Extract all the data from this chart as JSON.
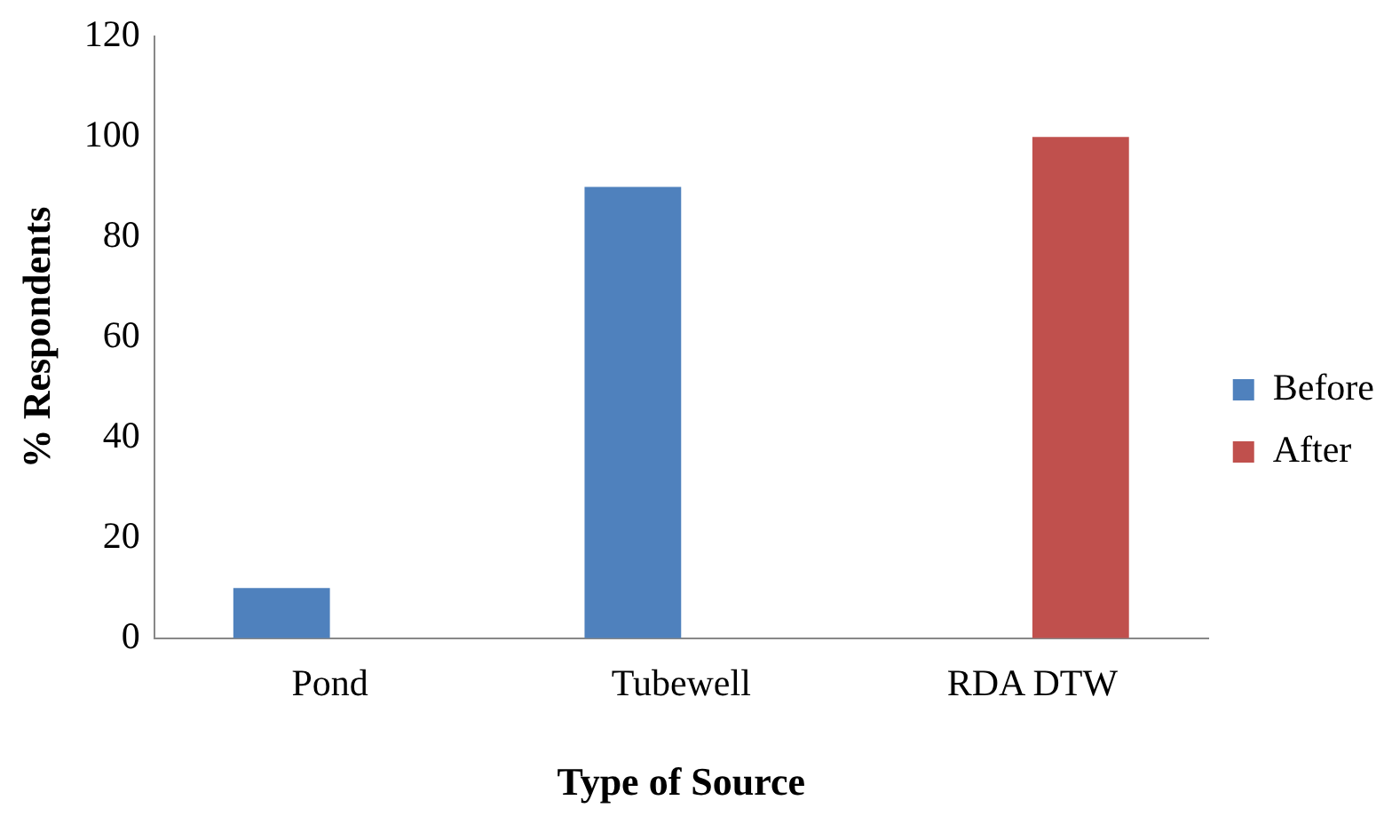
{
  "chart_data": {
    "type": "bar",
    "xlabel": "Type of Source",
    "ylabel": "% Respondents",
    "categories": [
      "Pond",
      "Tubewell",
      "RDA DTW"
    ],
    "series": [
      {
        "name": "Before",
        "color": "#4f81bd",
        "values": [
          10,
          90,
          0
        ]
      },
      {
        "name": "After",
        "color": "#c0504d",
        "values": [
          0,
          0,
          100
        ]
      }
    ],
    "ylim": [
      0,
      120
    ],
    "yticks": [
      0,
      20,
      40,
      60,
      80,
      100,
      120
    ],
    "grid": false,
    "legend": "right"
  }
}
